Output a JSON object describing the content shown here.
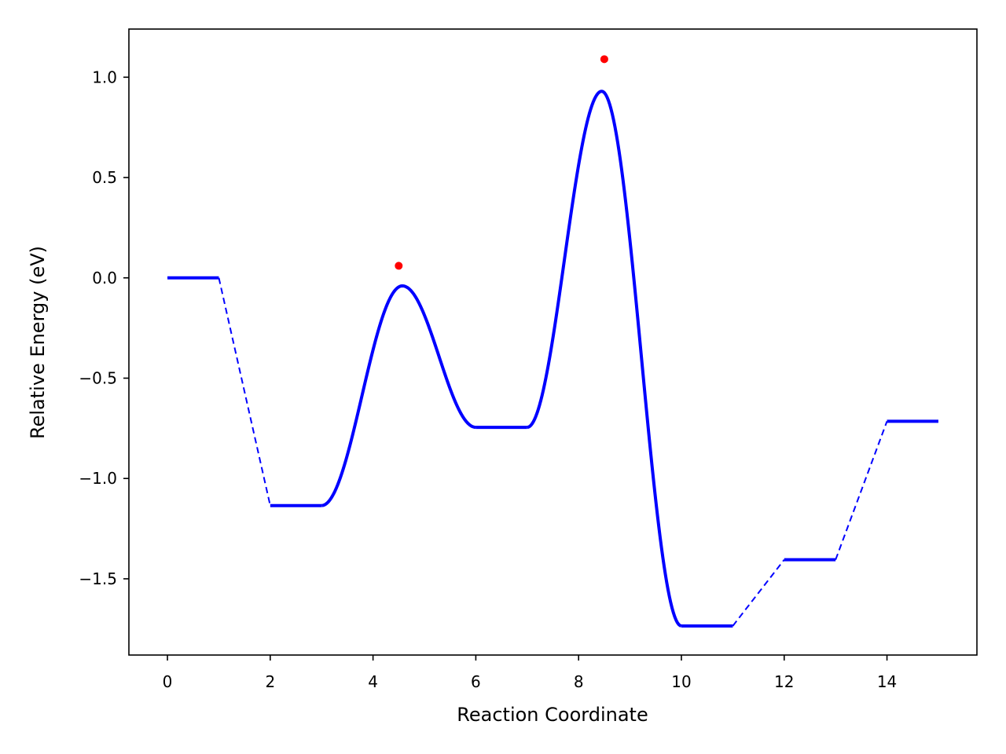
{
  "chart_data": {
    "type": "line",
    "title": "",
    "xlabel": "Reaction Coordinate",
    "ylabel": "Relative Energy (eV)",
    "xlim": [
      -0.75,
      15.75
    ],
    "ylim": [
      -1.88,
      1.24
    ],
    "xticks": [
      0,
      2,
      4,
      6,
      8,
      10,
      12,
      14
    ],
    "xtick_labels": [
      "0",
      "2",
      "4",
      "6",
      "8",
      "10",
      "12",
      "14"
    ],
    "yticks": [
      1.0,
      0.5,
      0.0,
      -0.5,
      -1.0,
      -1.5
    ],
    "ytick_labels": [
      "1.0",
      "0.5",
      "0.0",
      "−0.5",
      "−1.0",
      "−1.5"
    ],
    "grid": false,
    "line_color": "#0000ff",
    "marker_color": "#ff0000",
    "states": [
      {
        "x_start": 0,
        "x_end": 1,
        "energy": 0.0
      },
      {
        "x_start": 2,
        "x_end": 3,
        "energy": -1.135
      },
      {
        "x_start": 6,
        "x_end": 7,
        "energy": -0.745
      },
      {
        "x_start": 10,
        "x_end": 11,
        "energy": -1.735
      },
      {
        "x_start": 12,
        "x_end": 13,
        "energy": -1.405
      },
      {
        "x_start": 14,
        "x_end": 15,
        "energy": -0.715
      }
    ],
    "connectors": [
      {
        "from_x": 1,
        "from_y": 0.0,
        "to_x": 2,
        "to_y": -1.135
      },
      {
        "from_x": 11,
        "from_y": -1.735,
        "to_x": 12,
        "to_y": -1.405
      },
      {
        "from_x": 13,
        "from_y": -1.405,
        "to_x": 14,
        "to_y": -0.715
      }
    ],
    "barriers": [
      {
        "from_x": 3,
        "from_y": -1.135,
        "peak_x": 4.57,
        "peak_y": -0.04,
        "to_x": 6,
        "to_y": -0.745
      },
      {
        "from_x": 7,
        "from_y": -0.745,
        "peak_x": 8.45,
        "peak_y": 0.93,
        "to_x": 10,
        "to_y": -1.735
      }
    ],
    "markers": [
      {
        "x": 4.5,
        "y": 0.06
      },
      {
        "x": 8.5,
        "y": 1.09
      }
    ]
  }
}
